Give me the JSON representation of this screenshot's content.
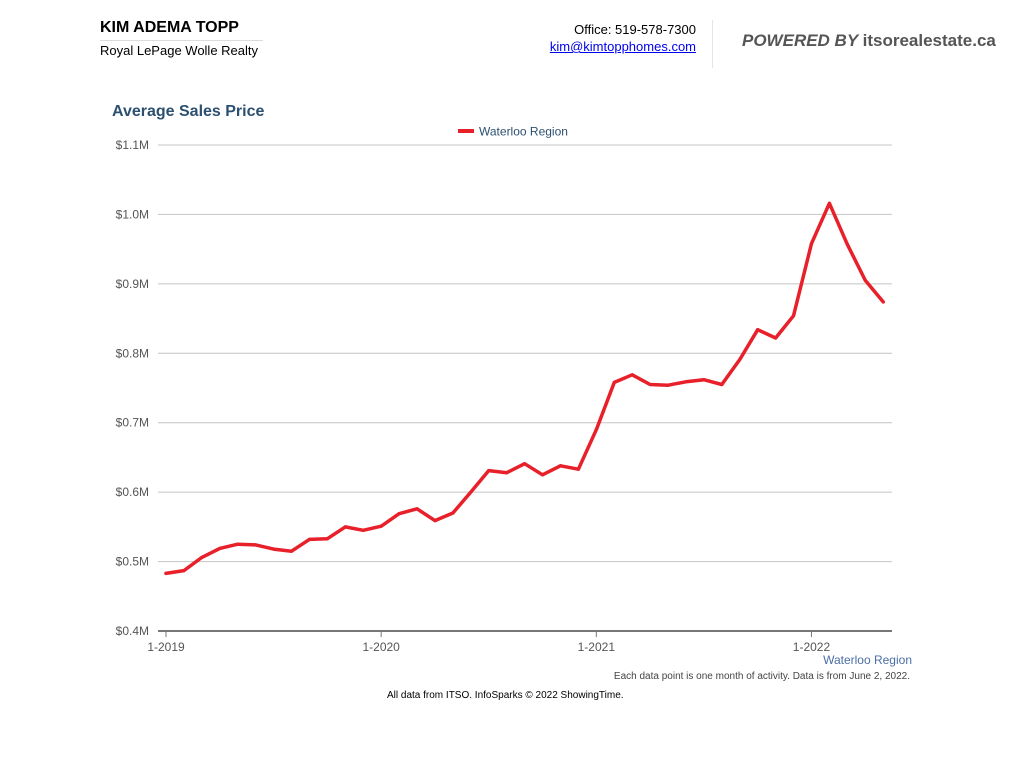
{
  "header": {
    "agent_name": "KIM ADEMA TOPP",
    "company": "Royal LePage Wolle Realty",
    "office": "Office: 519-578-7300",
    "email": "kim@kimtopphomes.com",
    "powered_prefix": "POWERED BY",
    "powered_site": "itsorealestate.ca"
  },
  "footer": {
    "note": "Each data point is one month of activity. Data is from June 2, 2022.",
    "source": "All data from ITSO. InfoSparks © 2022 ShowingTime."
  },
  "colors": {
    "series": "#e8202a",
    "title": "#2c5070",
    "region_label": "#4a6fa5"
  },
  "chart_data": {
    "type": "line",
    "title": "Average Sales Price",
    "xlabel": "",
    "ylabel": "",
    "region_label": "Waterloo Region",
    "x_start": "2019-01",
    "x_ticks": [
      {
        "label": "1-2019",
        "x": "2019-01"
      },
      {
        "label": "1-2020",
        "x": "2020-01"
      },
      {
        "label": "1-2021",
        "x": "2021-01"
      },
      {
        "label": "1-2022",
        "x": "2022-01"
      }
    ],
    "ylim": [
      400000,
      1100000
    ],
    "y_ticks": [
      {
        "label": "$0.4M",
        "value": 400000
      },
      {
        "label": "$0.5M",
        "value": 500000
      },
      {
        "label": "$0.6M",
        "value": 600000
      },
      {
        "label": "$0.7M",
        "value": 700000
      },
      {
        "label": "$0.8M",
        "value": 800000
      },
      {
        "label": "$0.9M",
        "value": 900000
      },
      {
        "label": "$1.0M",
        "value": 1000000
      },
      {
        "label": "$1.1M",
        "value": 1100000
      }
    ],
    "grid": true,
    "legend": "top-center",
    "series": [
      {
        "name": "Waterloo Region",
        "x": [
          "2019-01",
          "2019-02",
          "2019-03",
          "2019-04",
          "2019-05",
          "2019-06",
          "2019-07",
          "2019-08",
          "2019-09",
          "2019-10",
          "2019-11",
          "2019-12",
          "2020-01",
          "2020-02",
          "2020-03",
          "2020-04",
          "2020-05",
          "2020-06",
          "2020-07",
          "2020-08",
          "2020-09",
          "2020-10",
          "2020-11",
          "2020-12",
          "2021-01",
          "2021-02",
          "2021-03",
          "2021-04",
          "2021-05",
          "2021-06",
          "2021-07",
          "2021-08",
          "2021-09",
          "2021-10",
          "2021-11",
          "2021-12",
          "2022-01",
          "2022-02",
          "2022-03",
          "2022-04",
          "2022-05"
        ],
        "values": [
          483000,
          487000,
          506000,
          519000,
          525000,
          524000,
          518000,
          515000,
          532000,
          533000,
          550000,
          545000,
          551000,
          569000,
          576000,
          559000,
          570000,
          600000,
          631000,
          628000,
          641000,
          625000,
          638000,
          633000,
          690000,
          758000,
          769000,
          755000,
          754000,
          759000,
          762000,
          755000,
          791000,
          834000,
          822000,
          854000,
          958000,
          1016000,
          957000,
          905000,
          874000
        ]
      }
    ]
  }
}
